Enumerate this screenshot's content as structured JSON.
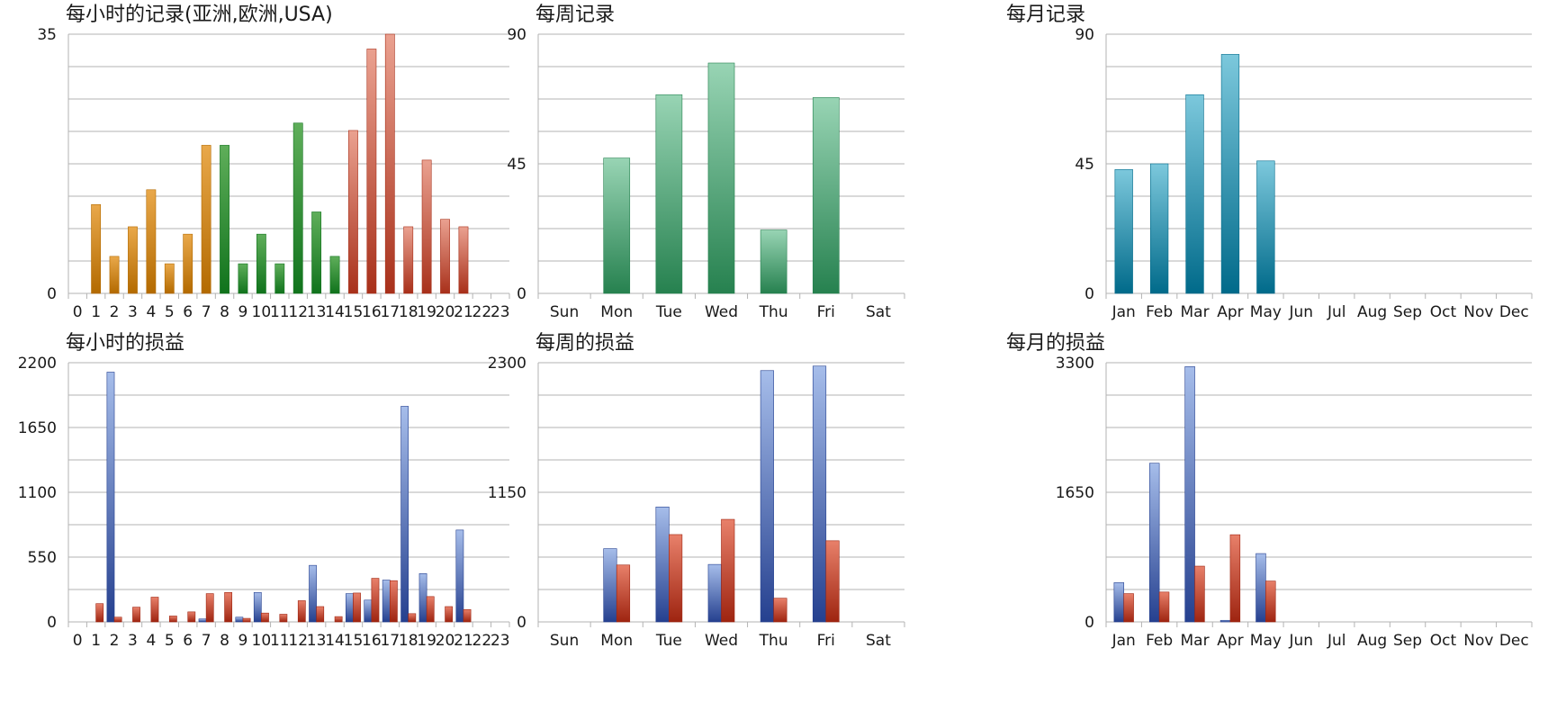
{
  "colors": {
    "orange": [
      "#e9a84a",
      "#b36a00"
    ],
    "green": [
      "#5fae5a",
      "#10731c"
    ],
    "red": [
      "#eaa190",
      "#a8301a"
    ],
    "weekly_green": [
      "#98d4b4",
      "#26814f"
    ],
    "monthly_teal": [
      "#7cc8dc",
      "#006a8a"
    ],
    "blue": [
      "#a6bdea",
      "#25408f"
    ],
    "loss_red": [
      "#e8806a",
      "#9e2410"
    ]
  },
  "chart_data": [
    {
      "id": "hourly-records",
      "type": "bar",
      "title": "每小时的记录(亚洲,欧洲,USA)",
      "categories": [
        "0",
        "1",
        "2",
        "3",
        "4",
        "5",
        "6",
        "7",
        "8",
        "9",
        "10",
        "11",
        "12",
        "13",
        "14",
        "15",
        "16",
        "17",
        "18",
        "19",
        "20",
        "21",
        "22",
        "23"
      ],
      "values": [
        0,
        12,
        5,
        9,
        14,
        4,
        8,
        20,
        20,
        4,
        8,
        4,
        23,
        11,
        5,
        22,
        33,
        35,
        9,
        18,
        10,
        9,
        0,
        0
      ],
      "bar_colors": [
        "orange",
        "orange",
        "orange",
        "orange",
        "orange",
        "orange",
        "orange",
        "orange",
        "green",
        "green",
        "green",
        "green",
        "green",
        "green",
        "green",
        "red",
        "red",
        "red",
        "red",
        "red",
        "red",
        "red",
        "red",
        "red"
      ],
      "ylim": [
        0,
        35
      ],
      "yticks": [
        "0",
        "35"
      ],
      "grid_lines": 8
    },
    {
      "id": "weekly-records",
      "type": "bar",
      "title": "每周记录",
      "categories": [
        "Sun",
        "Mon",
        "Tue",
        "Wed",
        "Thu",
        "Fri",
        "Sat"
      ],
      "values": [
        0,
        47,
        69,
        80,
        22,
        68,
        0
      ],
      "bar_color": "weekly_green",
      "ylim": [
        0,
        90
      ],
      "yticks": [
        "0",
        "45",
        "90"
      ],
      "grid_lines": 8
    },
    {
      "id": "monthly-records",
      "type": "bar",
      "title": "每月记录",
      "categories": [
        "Jan",
        "Feb",
        "Mar",
        "Apr",
        "May",
        "Jun",
        "Jul",
        "Aug",
        "Sep",
        "Oct",
        "Nov",
        "Dec"
      ],
      "values": [
        43,
        45,
        69,
        83,
        46,
        0,
        0,
        0,
        0,
        0,
        0,
        0
      ],
      "bar_color": "monthly_teal",
      "ylim": [
        0,
        90
      ],
      "yticks": [
        "0",
        "45",
        "90"
      ],
      "grid_lines": 8
    },
    {
      "id": "hourly-pnl",
      "type": "bar",
      "title": "每小时的损益",
      "categories": [
        "0",
        "1",
        "2",
        "3",
        "4",
        "5",
        "6",
        "7",
        "8",
        "9",
        "10",
        "11",
        "12",
        "13",
        "14",
        "15",
        "16",
        "17",
        "18",
        "19",
        "20",
        "21",
        "22",
        "23"
      ],
      "series": [
        {
          "values": [
            0,
            0,
            2120,
            0,
            0,
            0,
            0,
            25,
            0,
            40,
            250,
            0,
            0,
            480,
            0,
            240,
            185,
            355,
            1830,
            410,
            0,
            780,
            0,
            0
          ],
          "color": "blue"
        },
        {
          "values": [
            0,
            155,
            40,
            125,
            210,
            50,
            85,
            240,
            250,
            30,
            75,
            65,
            180,
            130,
            45,
            245,
            370,
            350,
            70,
            215,
            130,
            105,
            0,
            0
          ],
          "color": "loss_red"
        }
      ],
      "ylim": [
        0,
        2200
      ],
      "yticks": [
        "0",
        "550",
        "1100",
        "1650",
        "2200"
      ],
      "grid_lines": 8
    },
    {
      "id": "weekly-pnl",
      "type": "bar",
      "title": "每周的损益",
      "categories": [
        "Sun",
        "Mon",
        "Tue",
        "Wed",
        "Thu",
        "Fri",
        "Sat"
      ],
      "series": [
        {
          "values": [
            0,
            650,
            1020,
            510,
            2230,
            2270,
            0
          ],
          "color": "blue"
        },
        {
          "values": [
            0,
            505,
            775,
            910,
            210,
            720,
            0
          ],
          "color": "loss_red"
        }
      ],
      "ylim": [
        0,
        2300
      ],
      "yticks": [
        "0",
        "1150",
        "2300"
      ],
      "grid_lines": 8
    },
    {
      "id": "monthly-pnl",
      "type": "bar",
      "title": "每月的损益",
      "categories": [
        "Jan",
        "Feb",
        "Mar",
        "Apr",
        "May",
        "Jun",
        "Jul",
        "Aug",
        "Sep",
        "Oct",
        "Nov",
        "Dec"
      ],
      "series": [
        {
          "values": [
            500,
            2020,
            3250,
            20,
            870,
            0,
            0,
            0,
            0,
            0,
            0,
            0
          ],
          "color": "blue"
        },
        {
          "values": [
            360,
            380,
            710,
            1110,
            520,
            0,
            0,
            0,
            0,
            0,
            0,
            0
          ],
          "color": "loss_red"
        }
      ],
      "ylim": [
        0,
        3300
      ],
      "yticks": [
        "0",
        "1650",
        "3300"
      ],
      "grid_lines": 8
    }
  ]
}
